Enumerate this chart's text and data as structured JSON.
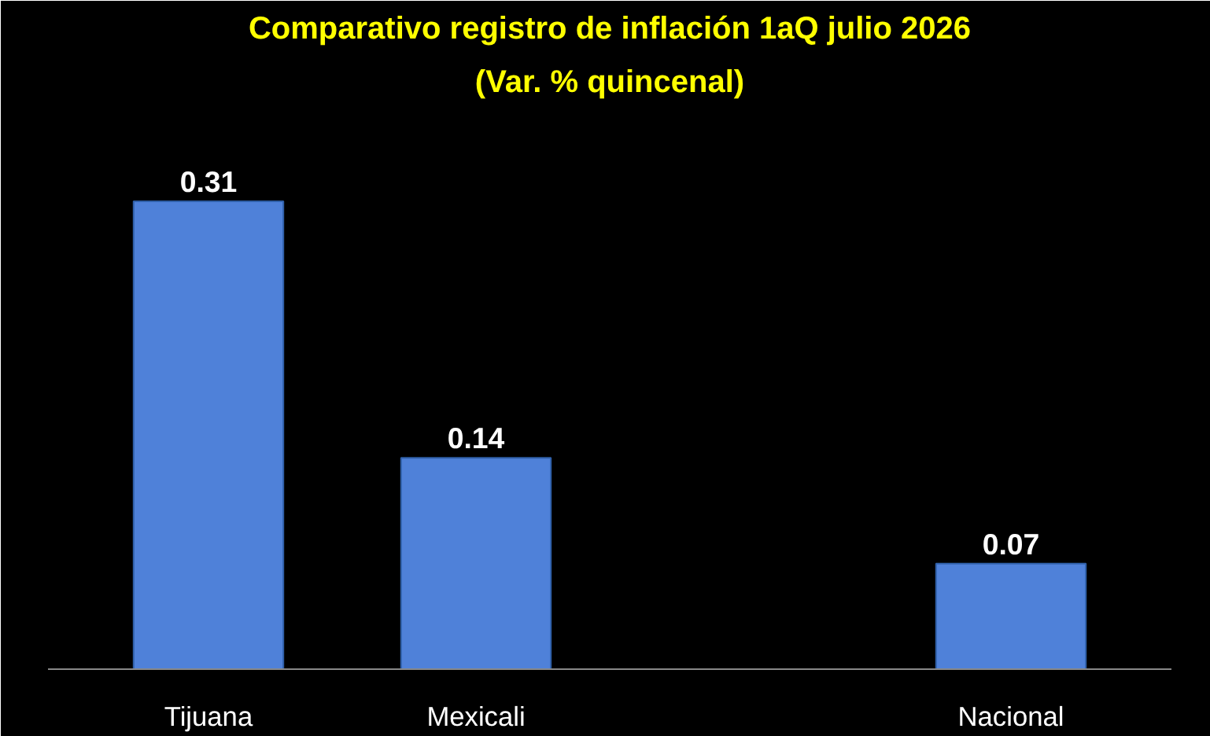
{
  "chart_data": {
    "type": "bar",
    "title": "Comparativo registro de inflación 1aQ julio 2026",
    "subtitle": "(Var. % quincenal)",
    "categories": [
      "Tijuana",
      "Mexicali",
      null,
      "Nacional"
    ],
    "values": [
      0.31,
      0.14,
      null,
      0.07
    ],
    "color": "#4f81d9",
    "data_labels": true,
    "grid": false
  }
}
